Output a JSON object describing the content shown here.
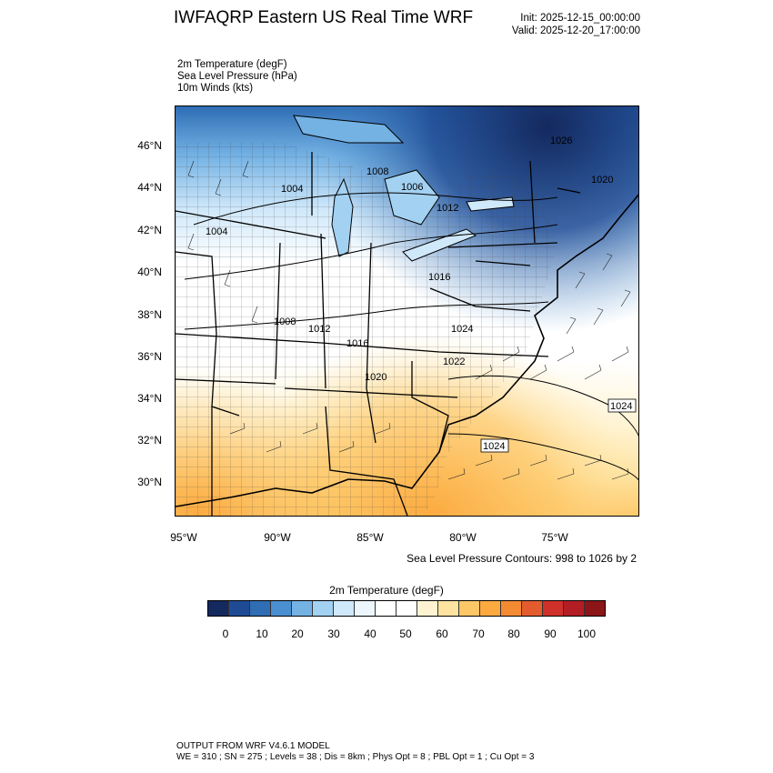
{
  "header": {
    "title": "IWFAQRP Eastern US Real Time WRF",
    "init": "Init: 2025-12-15_00:00:00",
    "valid": "Valid: 2025-12-20_17:00:00"
  },
  "variables": {
    "line1": "2m Temperature   (degF)",
    "line2": "Sea Level Pressure   (hPa)",
    "line3": "10m Winds   (kts)"
  },
  "axes": {
    "lat_labels": [
      "46°N",
      "44°N",
      "42°N",
      "40°N",
      "38°N",
      "36°N",
      "34°N",
      "32°N",
      "30°N"
    ],
    "lon_labels": [
      "95°W",
      "90°W",
      "85°W",
      "80°W",
      "75°W"
    ]
  },
  "contour_note": "Sea Level Pressure Contours: 998 to 1026 by 2",
  "pressure_labels": [
    "1026",
    "1020",
    "1008",
    "1006",
    "1004",
    "1012",
    "1004",
    "1016",
    "1008",
    "1012",
    "1016",
    "1020",
    "1024",
    "1022",
    "1024",
    "1024"
  ],
  "colorbar": {
    "title": "2m Temperature  (degF)",
    "labels": [
      "0",
      "10",
      "20",
      "30",
      "40",
      "50",
      "60",
      "70",
      "80",
      "90",
      "100"
    ],
    "colors": [
      "#14295e",
      "#1f4b94",
      "#2f6db5",
      "#4a8fcf",
      "#74b2e4",
      "#a3d1f2",
      "#cfe8fa",
      "#ecf6fd",
      "#ffffff",
      "#ffffff",
      "#fff3d2",
      "#ffe3a0",
      "#fdc767",
      "#fcaa40",
      "#f48a32",
      "#e45c2e",
      "#cf3029",
      "#b21e24",
      "#8c1518"
    ]
  },
  "footer": {
    "line1": "OUTPUT FROM WRF V4.6.1 MODEL",
    "line2": "WE = 310 ; SN = 275 ; Levels = 38 ; Dis = 8km ; Phys Opt = 8 ; PBL Opt = 1 ; Cu Opt = 3"
  }
}
